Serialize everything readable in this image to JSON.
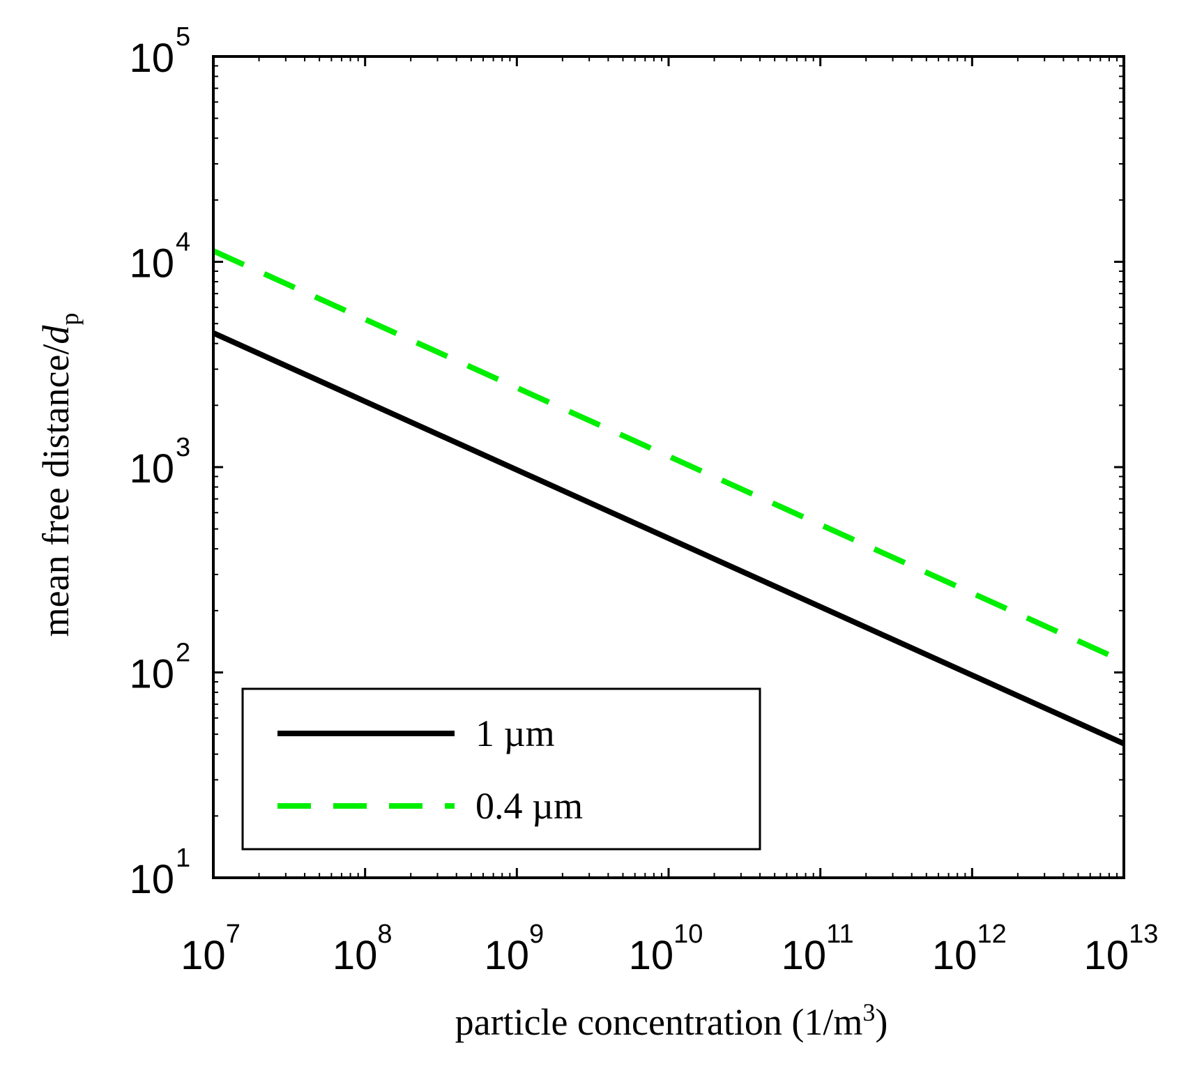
{
  "chart_data": {
    "type": "line",
    "xscale": "log",
    "yscale": "log",
    "xlim": [
      10000000.0,
      10000000000000.0
    ],
    "ylim": [
      10,
      100000
    ],
    "xlabel": {
      "main": "particle concentration (1/m",
      "sup": "3",
      "close": ")"
    },
    "ylabel": {
      "main": "mean free distance/",
      "var": "d",
      "sub": "p"
    },
    "x_ticks": [
      {
        "base": "10",
        "exp": "7"
      },
      {
        "base": "10",
        "exp": "8"
      },
      {
        "base": "10",
        "exp": "9"
      },
      {
        "base": "10",
        "exp": "10"
      },
      {
        "base": "10",
        "exp": "11"
      },
      {
        "base": "10",
        "exp": "12"
      },
      {
        "base": "10",
        "exp": "13"
      }
    ],
    "y_ticks": [
      {
        "base": "10",
        "exp": "1"
      },
      {
        "base": "10",
        "exp": "2"
      },
      {
        "base": "10",
        "exp": "3"
      },
      {
        "base": "10",
        "exp": "4"
      },
      {
        "base": "10",
        "exp": "5"
      }
    ],
    "legend_position": "bottom-left",
    "series": [
      {
        "name": "1 µm",
        "color": "#000000",
        "dash": "solid",
        "x": [
          10000000.0,
          10000000000000.0
        ],
        "y": [
          4500,
          45
        ]
      },
      {
        "name": "0.4 µm",
        "color": "#00ee00",
        "dash": "dashed",
        "x": [
          10000000.0,
          10000000000000.0
        ],
        "y": [
          11300,
          113
        ]
      }
    ]
  }
}
